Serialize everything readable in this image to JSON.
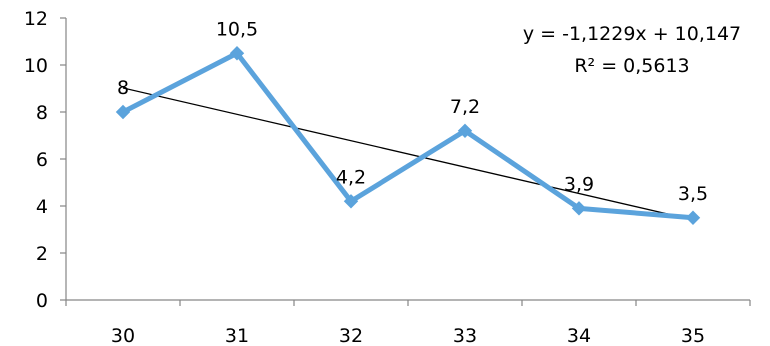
{
  "chart_data": {
    "type": "line",
    "categories": [
      "30",
      "31",
      "32",
      "33",
      "34",
      "35"
    ],
    "series": [
      {
        "values": [
          8,
          10.5,
          4.2,
          7.2,
          3.9,
          3.5
        ],
        "color": "#5BA3DC",
        "marker": "diamond"
      }
    ],
    "data_labels": [
      "8",
      "10,5",
      "4,2",
      "7,2",
      "3,9",
      "3,5"
    ],
    "y_ticks": [
      "0",
      "2",
      "4",
      "6",
      "8",
      "10",
      "12"
    ],
    "ylim": [
      0,
      12
    ],
    "trendline": {
      "type": "linear",
      "slope": -1.1229,
      "intercept": 10.147,
      "color": "#000000",
      "equation": "y = -1,1229x + 10,147",
      "r_squared": "R² = 0,5613"
    },
    "title": "",
    "xlabel": "",
    "ylabel": "",
    "grid": false,
    "legend": "none"
  }
}
